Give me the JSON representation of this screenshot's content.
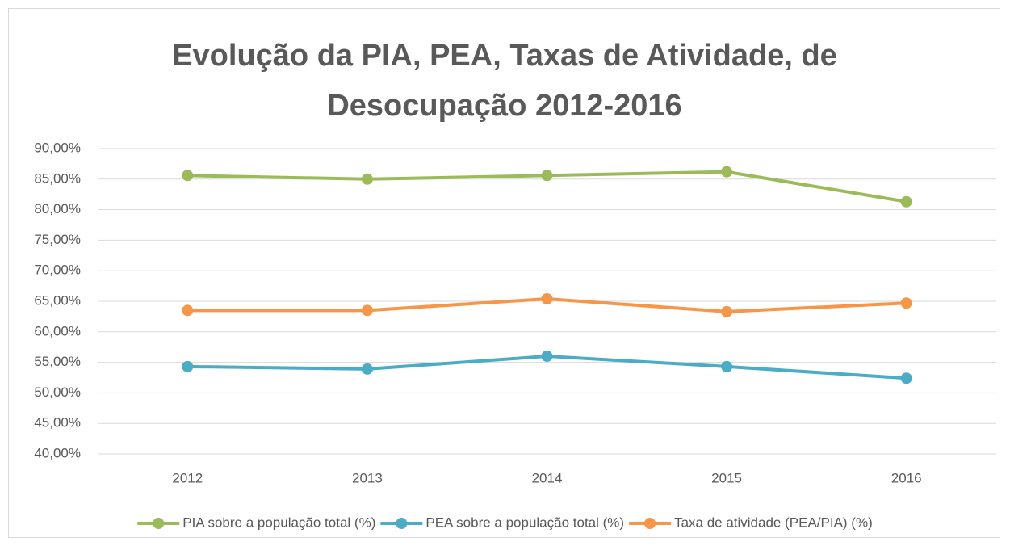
{
  "chart_data": {
    "type": "line",
    "title": "Evolução da PIA, PEA, Taxas de Atividade, de Desocupação 2012-2016",
    "categories": [
      "2012",
      "2013",
      "2014",
      "2015",
      "2016"
    ],
    "series": [
      {
        "name": "PIA sobre a população total (%)",
        "color": "#9bbb59",
        "values": [
          85.6,
          85.0,
          85.6,
          86.2,
          81.3
        ]
      },
      {
        "name": "PEA sobre a população total (%)",
        "color": "#4bacc6",
        "values": [
          54.3,
          53.9,
          56.0,
          54.3,
          52.4
        ]
      },
      {
        "name": "Taxa de atividade (PEA/PIA) (%)",
        "color": "#f79646",
        "values": [
          63.5,
          63.5,
          65.4,
          63.3,
          64.7
        ]
      }
    ],
    "ylim": [
      40,
      90
    ],
    "yticks": [
      {
        "value": 40,
        "label": "40,00%"
      },
      {
        "value": 45,
        "label": "45,00%"
      },
      {
        "value": 50,
        "label": "50,00%"
      },
      {
        "value": 55,
        "label": "55,00%"
      },
      {
        "value": 60,
        "label": "60,00%"
      },
      {
        "value": 65,
        "label": "65,00%"
      },
      {
        "value": 70,
        "label": "70,00%"
      },
      {
        "value": 75,
        "label": "75,00%"
      },
      {
        "value": 80,
        "label": "80,00%"
      },
      {
        "value": 85,
        "label": "85,00%"
      },
      {
        "value": 90,
        "label": "90,00%"
      }
    ],
    "grid": true,
    "legend": "bottom"
  }
}
